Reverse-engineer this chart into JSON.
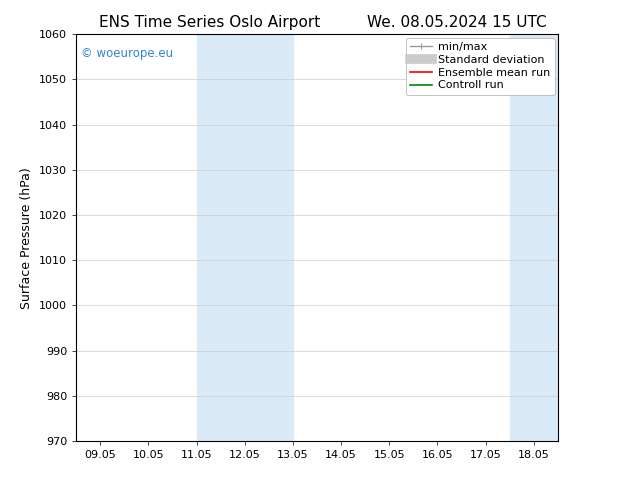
{
  "title_left": "ENS Time Series Oslo Airport",
  "title_right": "We. 08.05.2024 15 UTC",
  "ylabel": "Surface Pressure (hPa)",
  "ylim": [
    970,
    1060
  ],
  "yticks": [
    970,
    980,
    990,
    1000,
    1010,
    1020,
    1030,
    1040,
    1050,
    1060
  ],
  "xtick_labels": [
    "09.05",
    "10.05",
    "11.05",
    "12.05",
    "13.05",
    "14.05",
    "15.05",
    "16.05",
    "17.05",
    "18.05"
  ],
  "xtick_positions": [
    0,
    1,
    2,
    3,
    4,
    5,
    6,
    7,
    8,
    9
  ],
  "xlim": [
    -0.5,
    9.5
  ],
  "shaded_bands": [
    {
      "x_start": 2.0,
      "x_end": 4.0,
      "color": "#daeaf7"
    },
    {
      "x_start": 8.5,
      "x_end": 9.5,
      "color": "#daeaf7"
    }
  ],
  "watermark_text": "© woeurope.eu",
  "watermark_color": "#3388cc",
  "background_color": "#ffffff",
  "legend_labels": [
    "min/max",
    "Standard deviation",
    "Ensemble mean run",
    "Controll run"
  ],
  "legend_colors": [
    "#999999",
    "#cccccc",
    "#ff0000",
    "#008800"
  ],
  "spine_color": "#000000",
  "grid_color": "#cccccc",
  "title_fontsize": 11,
  "tick_fontsize": 8,
  "ylabel_fontsize": 9,
  "legend_fontsize": 8
}
